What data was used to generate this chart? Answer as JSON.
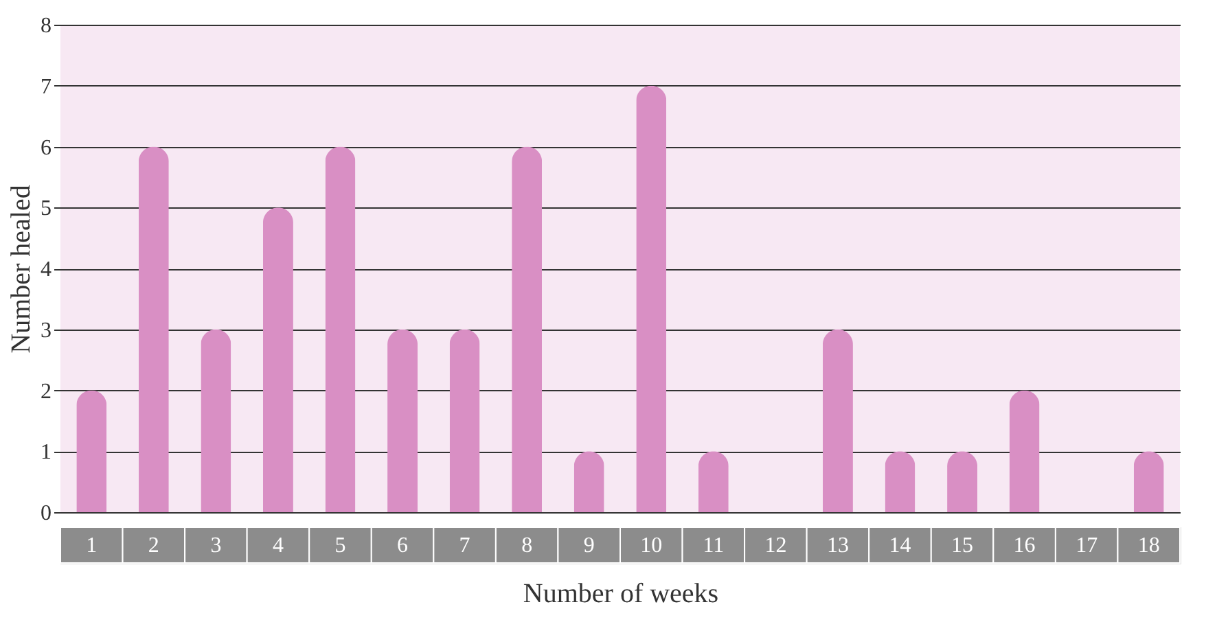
{
  "chart_data": {
    "type": "bar",
    "xlabel": "Number of weeks",
    "ylabel": "Number healed",
    "categories": [
      "1",
      "2",
      "3",
      "4",
      "5",
      "6",
      "7",
      "8",
      "9",
      "10",
      "11",
      "12",
      "13",
      "14",
      "15",
      "16",
      "17",
      "18"
    ],
    "values": [
      2,
      6,
      3,
      5,
      6,
      3,
      3,
      6,
      1,
      7,
      1,
      0,
      3,
      1,
      1,
      2,
      0,
      1
    ],
    "color": "#d98fc4",
    "ylim": [
      0,
      8
    ],
    "yticks": [
      0,
      1,
      2,
      3,
      4,
      5,
      6,
      7,
      8
    ],
    "grid": "y"
  }
}
